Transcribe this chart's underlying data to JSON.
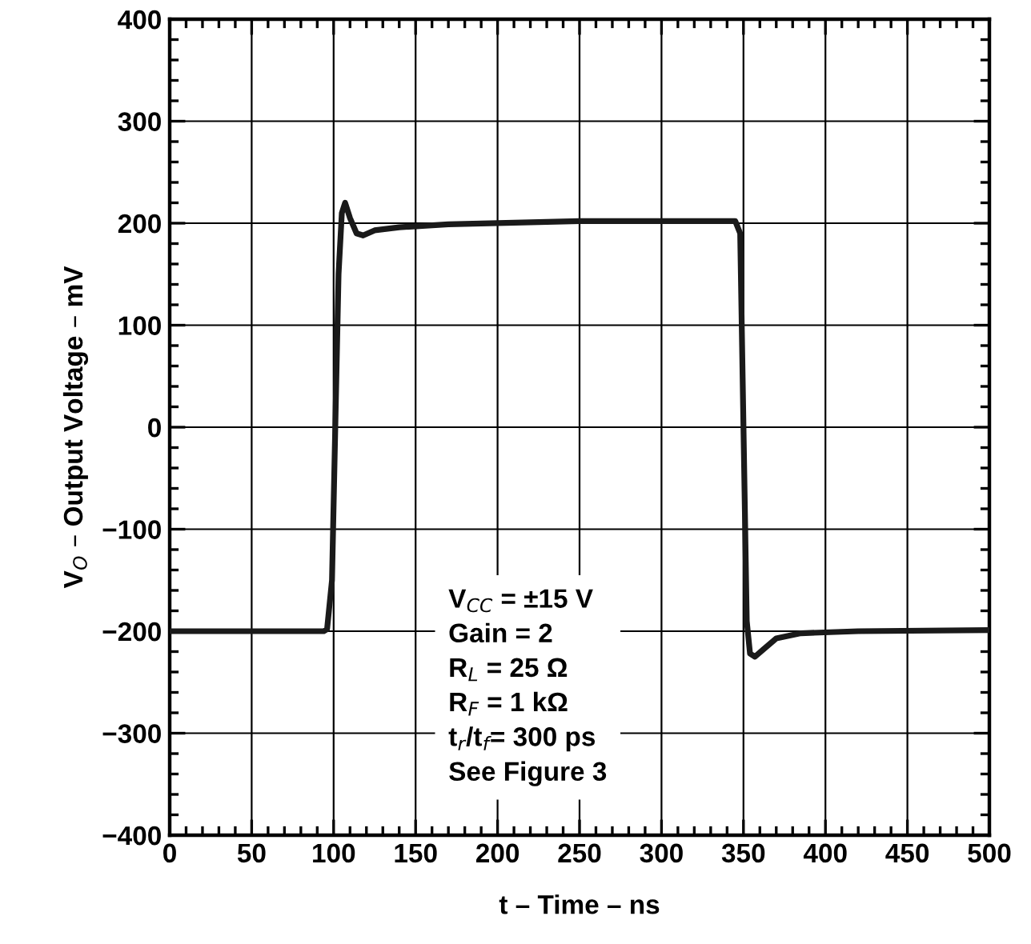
{
  "chart_data": {
    "type": "line",
    "xlabel": "t – Time – ns",
    "ylabel": "V$_{O}$ – Output Voltage – mV",
    "x": [
      0,
      94,
      96,
      99,
      101,
      103,
      105,
      107,
      110,
      114,
      118,
      125,
      140,
      170,
      250,
      345,
      348,
      350,
      352,
      354,
      357,
      362,
      370,
      385,
      420,
      500
    ],
    "series": [
      {
        "color": "#1a1a1a",
        "values": [
          -200,
          -200,
          -198,
          -150,
          0,
          150,
          210,
          220,
          205,
          190,
          188,
          193,
          196,
          199,
          202,
          202,
          190,
          0,
          -190,
          -222,
          -225,
          -218,
          -207,
          -202,
          -200,
          -199
        ]
      }
    ],
    "xlim": [
      0,
      500
    ],
    "xticks": [
      0,
      50,
      100,
      150,
      200,
      250,
      300,
      350,
      400,
      450,
      500
    ],
    "ylim": [
      -400,
      400
    ],
    "yticks": [
      {
        "value": -400,
        "label": "−400"
      },
      {
        "value": -300,
        "label": "−300"
      },
      {
        "value": -200,
        "label": "−200"
      },
      {
        "value": -100,
        "label": "−100"
      },
      0,
      100,
      200,
      300,
      400
    ],
    "grid": true,
    "legend": false,
    "marker": "none",
    "line_style": "solid",
    "annotations": [
      "V$_{CC}$ = ±15 V",
      "Gain = 2",
      "R$_{L}$ = 25 Ω",
      "R$_{F}$ = 1 kΩ",
      "t$_{r}$/t$_{f}$= 300 ps",
      "See Figure 3"
    ]
  }
}
